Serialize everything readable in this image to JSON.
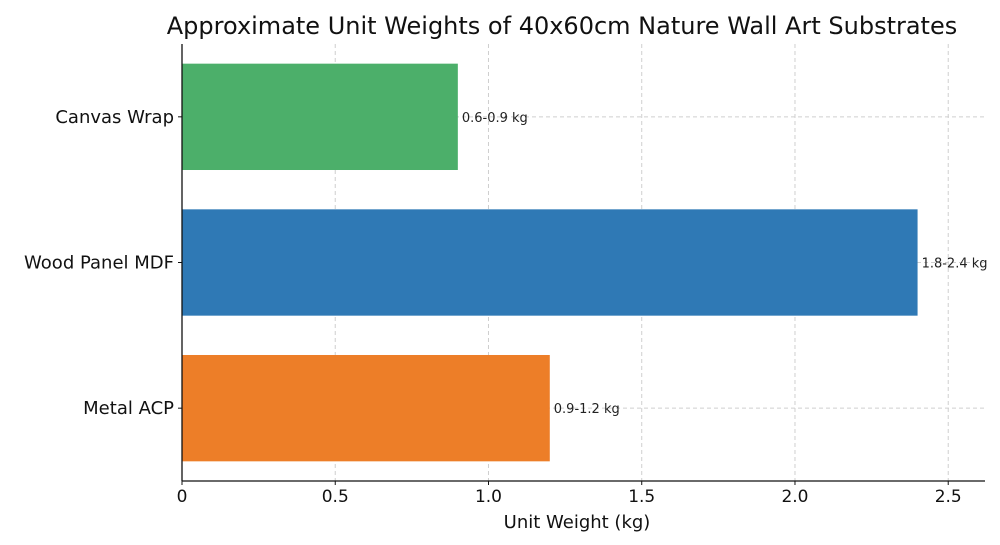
{
  "chart_data": {
    "type": "bar",
    "orientation": "horizontal",
    "title": "Approximate Unit Weights of 40x60cm Nature Wall Art Substrates",
    "xlabel": "Unit Weight (kg)",
    "ylabel": "",
    "xlim": [
      0,
      2.62
    ],
    "xticks": [
      0,
      0.5,
      1.0,
      1.5,
      2.0,
      2.5
    ],
    "xtick_labels": [
      "0",
      "0.5",
      "1.0",
      "1.5",
      "2.0",
      "2.5"
    ],
    "grid": true,
    "categories": [
      "Canvas Wrap",
      "Wood Panel MDF",
      "Metal ACP"
    ],
    "values": [
      0.9,
      2.4,
      1.2
    ],
    "data_labels": [
      "0.6-0.9 kg",
      "1.8-2.4 kg",
      "0.9-1.2 kg"
    ],
    "colors": [
      "#4caf6a",
      "#2f79b5",
      "#ed7e28"
    ]
  }
}
